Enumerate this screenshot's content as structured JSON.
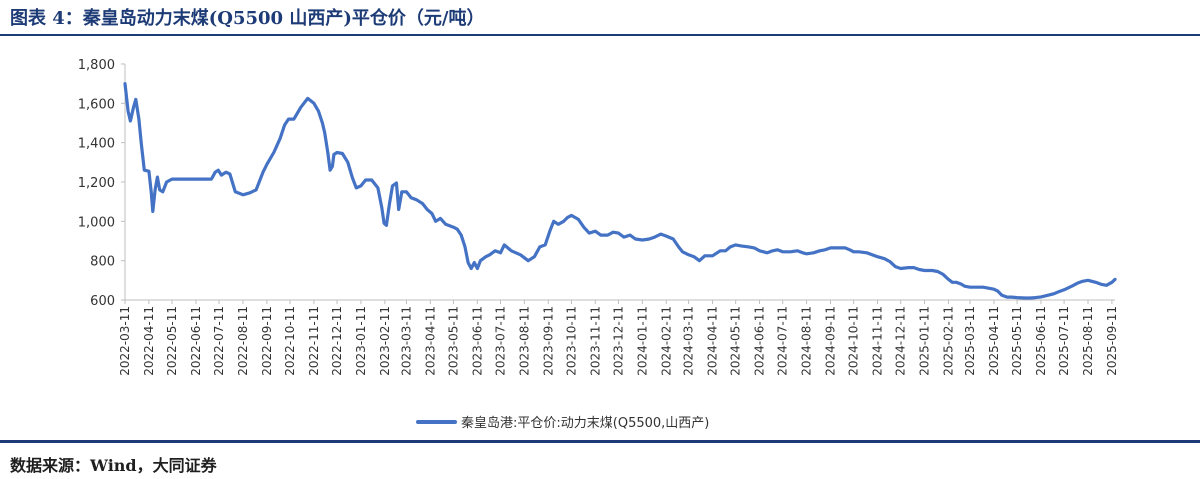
{
  "figure": {
    "title": "图表 4：秦皇岛动力末煤(Q5500 山西产)平仓价（元/吨）",
    "source": "数据来源：Wind，大同证券"
  },
  "colors": {
    "line": "#4472c4",
    "accent": "#1d3b76",
    "axis": "#bfbfbf"
  },
  "chart_data": {
    "type": "line",
    "title": "",
    "xlabel": "",
    "ylabel": "",
    "ylim": [
      600,
      1800
    ],
    "yticks": [
      "600",
      "800",
      "1,000",
      "1,200",
      "1,400",
      "1,600",
      "1,800"
    ],
    "grid": false,
    "legend_position": "bottom",
    "x_tick_labels": [
      "2022-03-11",
      "2022-04-11",
      "2022-05-11",
      "2022-06-11",
      "2022-07-11",
      "2022-08-11",
      "2022-09-11",
      "2022-10-11",
      "2022-11-11",
      "2022-12-11",
      "2023-01-11",
      "2023-02-11",
      "2023-03-11",
      "2023-04-11",
      "2023-05-11",
      "2023-06-11",
      "2023-07-11",
      "2023-08-11",
      "2023-09-11",
      "2023-10-11",
      "2023-11-11",
      "2023-12-11",
      "2024-01-11",
      "2024-02-11",
      "2024-03-11",
      "2024-04-11",
      "2024-05-11",
      "2024-06-11",
      "2024-07-11",
      "2024-08-11",
      "2024-09-11",
      "2024-10-11",
      "2024-11-11",
      "2024-12-11",
      "2025-01-11",
      "2025-02-11",
      "2025-03-11",
      "2025-04-11",
      "2025-05-11",
      "2025-06-11",
      "2025-07-11",
      "2025-08-11",
      "2025-09-11"
    ],
    "series": [
      {
        "name": "秦皇岛港:平仓价:动力末煤(Q5500,山西产)",
        "points": [
          [
            "2022-03-11",
            1700
          ],
          [
            "2022-03-15",
            1560
          ],
          [
            "2022-03-18",
            1510
          ],
          [
            "2022-03-22",
            1580
          ],
          [
            "2022-03-25",
            1620
          ],
          [
            "2022-03-29",
            1520
          ],
          [
            "2022-04-01",
            1400
          ],
          [
            "2022-04-05",
            1260
          ],
          [
            "2022-04-11",
            1255
          ],
          [
            "2022-04-14",
            1150
          ],
          [
            "2022-04-16",
            1050
          ],
          [
            "2022-04-19",
            1160
          ],
          [
            "2022-04-22",
            1225
          ],
          [
            "2022-04-25",
            1160
          ],
          [
            "2022-04-29",
            1150
          ],
          [
            "2022-05-04",
            1200
          ],
          [
            "2022-05-11",
            1215
          ],
          [
            "2022-06-11",
            1215
          ],
          [
            "2022-07-01",
            1215
          ],
          [
            "2022-07-06",
            1250
          ],
          [
            "2022-07-10",
            1260
          ],
          [
            "2022-07-14",
            1235
          ],
          [
            "2022-07-20",
            1250
          ],
          [
            "2022-07-25",
            1240
          ],
          [
            "2022-08-01",
            1150
          ],
          [
            "2022-08-11",
            1135
          ],
          [
            "2022-08-20",
            1145
          ],
          [
            "2022-08-28",
            1160
          ],
          [
            "2022-09-06",
            1250
          ],
          [
            "2022-09-11",
            1290
          ],
          [
            "2022-09-20",
            1350
          ],
          [
            "2022-09-28",
            1420
          ],
          [
            "2022-10-04",
            1490
          ],
          [
            "2022-10-09",
            1520
          ],
          [
            "2022-10-16",
            1520
          ],
          [
            "2022-10-25",
            1580
          ],
          [
            "2022-11-03",
            1625
          ],
          [
            "2022-11-11",
            1600
          ],
          [
            "2022-11-17",
            1560
          ],
          [
            "2022-11-22",
            1500
          ],
          [
            "2022-11-25",
            1450
          ],
          [
            "2022-11-29",
            1350
          ],
          [
            "2022-12-02",
            1260
          ],
          [
            "2022-12-05",
            1280
          ],
          [
            "2022-12-07",
            1340
          ],
          [
            "2022-12-11",
            1350
          ],
          [
            "2022-12-18",
            1345
          ],
          [
            "2022-12-25",
            1300
          ],
          [
            "2022-12-31",
            1220
          ],
          [
            "2023-01-05",
            1170
          ],
          [
            "2023-01-11",
            1180
          ],
          [
            "2023-01-17",
            1210
          ],
          [
            "2023-01-25",
            1210
          ],
          [
            "2023-02-02",
            1170
          ],
          [
            "2023-02-07",
            1070
          ],
          [
            "2023-02-10",
            990
          ],
          [
            "2023-02-13",
            980
          ],
          [
            "2023-02-17",
            1090
          ],
          [
            "2023-02-21",
            1180
          ],
          [
            "2023-02-26",
            1195
          ],
          [
            "2023-03-01",
            1060
          ],
          [
            "2023-03-05",
            1150
          ],
          [
            "2023-03-11",
            1150
          ],
          [
            "2023-03-17",
            1120
          ],
          [
            "2023-03-24",
            1110
          ],
          [
            "2023-04-01",
            1090
          ],
          [
            "2023-04-07",
            1060
          ],
          [
            "2023-04-13",
            1040
          ],
          [
            "2023-04-18",
            1000
          ],
          [
            "2023-04-24",
            1015
          ],
          [
            "2023-05-01",
            985
          ],
          [
            "2023-05-11",
            970
          ],
          [
            "2023-05-16",
            960
          ],
          [
            "2023-05-21",
            930
          ],
          [
            "2023-05-26",
            870
          ],
          [
            "2023-05-30",
            790
          ],
          [
            "2023-06-03",
            760
          ],
          [
            "2023-06-07",
            790
          ],
          [
            "2023-06-11",
            760
          ],
          [
            "2023-06-15",
            800
          ],
          [
            "2023-06-22",
            820
          ],
          [
            "2023-06-27",
            830
          ],
          [
            "2023-07-04",
            850
          ],
          [
            "2023-07-11",
            840
          ],
          [
            "2023-07-16",
            880
          ],
          [
            "2023-07-25",
            850
          ],
          [
            "2023-08-06",
            830
          ],
          [
            "2023-08-16",
            800
          ],
          [
            "2023-08-24",
            820
          ],
          [
            "2023-08-31",
            870
          ],
          [
            "2023-09-07",
            880
          ],
          [
            "2023-09-13",
            950
          ],
          [
            "2023-09-18",
            1000
          ],
          [
            "2023-09-24",
            985
          ],
          [
            "2023-10-01",
            1000
          ],
          [
            "2023-10-06",
            1020
          ],
          [
            "2023-10-11",
            1030
          ],
          [
            "2023-10-20",
            1010
          ],
          [
            "2023-10-27",
            970
          ],
          [
            "2023-11-03",
            940
          ],
          [
            "2023-11-11",
            950
          ],
          [
            "2023-11-18",
            930
          ],
          [
            "2023-11-27",
            930
          ],
          [
            "2023-12-04",
            945
          ],
          [
            "2023-12-11",
            940
          ],
          [
            "2023-12-18",
            920
          ],
          [
            "2023-12-26",
            930
          ],
          [
            "2024-01-02",
            910
          ],
          [
            "2024-01-11",
            905
          ],
          [
            "2024-01-20",
            910
          ],
          [
            "2024-01-27",
            920
          ],
          [
            "2024-02-04",
            935
          ],
          [
            "2024-02-11",
            925
          ],
          [
            "2024-02-20",
            910
          ],
          [
            "2024-02-27",
            870
          ],
          [
            "2024-03-03",
            845
          ],
          [
            "2024-03-11",
            830
          ],
          [
            "2024-03-18",
            820
          ],
          [
            "2024-03-25",
            800
          ],
          [
            "2024-04-01",
            825
          ],
          [
            "2024-04-11",
            825
          ],
          [
            "2024-04-21",
            850
          ],
          [
            "2024-04-28",
            850
          ],
          [
            "2024-05-04",
            870
          ],
          [
            "2024-05-11",
            880
          ],
          [
            "2024-05-18",
            875
          ],
          [
            "2024-05-28",
            870
          ],
          [
            "2024-06-04",
            865
          ],
          [
            "2024-06-11",
            850
          ],
          [
            "2024-06-21",
            840
          ],
          [
            "2024-06-28",
            850
          ],
          [
            "2024-07-04",
            855
          ],
          [
            "2024-07-11",
            845
          ],
          [
            "2024-07-21",
            845
          ],
          [
            "2024-07-30",
            850
          ],
          [
            "2024-08-06",
            840
          ],
          [
            "2024-08-11",
            835
          ],
          [
            "2024-08-20",
            840
          ],
          [
            "2024-08-28",
            850
          ],
          [
            "2024-09-04",
            855
          ],
          [
            "2024-09-11",
            865
          ],
          [
            "2024-09-21",
            865
          ],
          [
            "2024-09-30",
            865
          ],
          [
            "2024-10-06",
            855
          ],
          [
            "2024-10-11",
            845
          ],
          [
            "2024-10-18",
            845
          ],
          [
            "2024-10-28",
            840
          ],
          [
            "2024-11-04",
            830
          ],
          [
            "2024-11-11",
            820
          ],
          [
            "2024-11-20",
            810
          ],
          [
            "2024-11-27",
            795
          ],
          [
            "2024-12-04",
            770
          ],
          [
            "2024-12-11",
            760
          ],
          [
            "2024-12-21",
            765
          ],
          [
            "2024-12-28",
            765
          ],
          [
            "2025-01-04",
            755
          ],
          [
            "2025-01-11",
            750
          ],
          [
            "2025-01-21",
            750
          ],
          [
            "2025-01-28",
            745
          ],
          [
            "2025-02-04",
            730
          ],
          [
            "2025-02-11",
            705
          ],
          [
            "2025-02-16",
            690
          ],
          [
            "2025-02-21",
            690
          ],
          [
            "2025-02-28",
            680
          ],
          [
            "2025-03-04",
            670
          ],
          [
            "2025-03-11",
            665
          ],
          [
            "2025-03-21",
            665
          ],
          [
            "2025-03-28",
            665
          ],
          [
            "2025-04-04",
            660
          ],
          [
            "2025-04-11",
            655
          ],
          [
            "2025-04-16",
            645
          ],
          [
            "2025-04-21",
            625
          ],
          [
            "2025-04-28",
            615
          ],
          [
            "2025-05-04",
            615
          ],
          [
            "2025-05-11",
            612
          ],
          [
            "2025-05-21",
            610
          ],
          [
            "2025-05-28",
            610
          ],
          [
            "2025-06-04",
            612
          ],
          [
            "2025-06-11",
            616
          ],
          [
            "2025-06-21",
            625
          ],
          [
            "2025-06-28",
            632
          ],
          [
            "2025-07-04",
            642
          ],
          [
            "2025-07-11",
            652
          ],
          [
            "2025-07-21",
            670
          ],
          [
            "2025-07-28",
            685
          ],
          [
            "2025-08-04",
            695
          ],
          [
            "2025-08-11",
            700
          ],
          [
            "2025-08-21",
            690
          ],
          [
            "2025-08-28",
            680
          ],
          [
            "2025-09-04",
            675
          ],
          [
            "2025-09-11",
            690
          ],
          [
            "2025-09-15",
            705
          ]
        ]
      }
    ]
  }
}
